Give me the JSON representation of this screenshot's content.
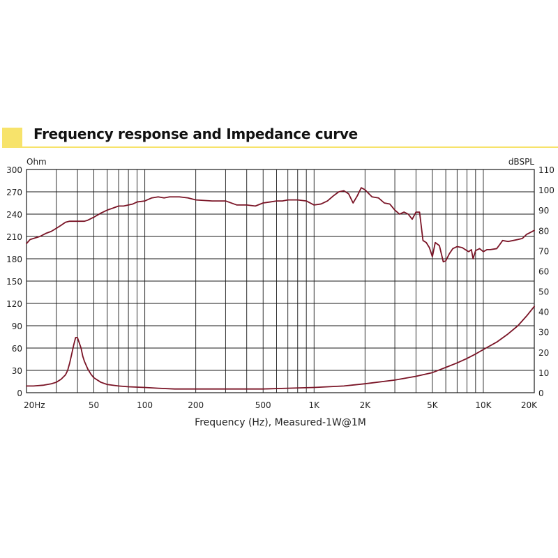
{
  "title": "Frequency response and Impedance curve",
  "colors": {
    "accent": "#f7e36b",
    "curve": "#7a1426",
    "grid": "#1a1a1a"
  },
  "chart_data": {
    "type": "line",
    "title": "Frequency response and Impedance curve",
    "xlabel": "Frequency (Hz), Measured-1W@1M",
    "ylabel_left": "Ohm",
    "ylabel_right": "dBSPL",
    "xscale": "log",
    "xlim": [
      20,
      20000
    ],
    "ylim_left": [
      0,
      300
    ],
    "ylim_right": [
      0,
      110
    ],
    "grid": true,
    "x_tick_labels": [
      {
        "value": 20,
        "label": "20Hz"
      },
      {
        "value": 50,
        "label": "50"
      },
      {
        "value": 100,
        "label": "100"
      },
      {
        "value": 200,
        "label": "200"
      },
      {
        "value": 500,
        "label": "500"
      },
      {
        "value": 1000,
        "label": "1K"
      },
      {
        "value": 2000,
        "label": "2K"
      },
      {
        "value": 5000,
        "label": "5K"
      },
      {
        "value": 10000,
        "label": "10K"
      },
      {
        "value": 20000,
        "label": "20K"
      }
    ],
    "y_left_ticks": [
      0,
      30,
      60,
      90,
      120,
      150,
      180,
      210,
      240,
      270,
      300
    ],
    "y_right_ticks": [
      0,
      10,
      20,
      30,
      40,
      50,
      60,
      70,
      80,
      90,
      100,
      110
    ],
    "series": [
      {
        "axis": "right",
        "x": [
          20,
          21,
          22,
          24,
          26,
          28,
          30,
          32,
          34,
          36,
          38,
          40,
          42,
          44,
          46,
          50,
          55,
          60,
          65,
          70,
          75,
          80,
          85,
          90,
          100,
          110,
          120,
          130,
          140,
          160,
          180,
          200,
          250,
          300,
          350,
          400,
          450,
          500,
          550,
          600,
          650,
          700,
          800,
          900,
          1000,
          1100,
          1200,
          1300,
          1400,
          1500,
          1600,
          1700,
          1800,
          1900,
          2000,
          2200,
          2400,
          2600,
          2800,
          3000,
          3200,
          3400,
          3600,
          3800,
          4000,
          4200,
          4400,
          4600,
          4800,
          5000,
          5200,
          5500,
          5800,
          6000,
          6300,
          6600,
          7000,
          7500,
          8000,
          8200,
          8500,
          8700,
          9000,
          9500,
          10000,
          10500,
          11000,
          12000,
          12500,
          13000,
          14000,
          15000,
          16000,
          17000,
          18000,
          19000,
          20000
        ],
        "values": [
          73.5,
          75.5,
          76,
          77,
          78.5,
          79.5,
          81,
          82.5,
          84,
          84.5,
          84.5,
          84.5,
          84.5,
          84.5,
          85,
          86.5,
          88.5,
          90,
          91,
          92,
          92,
          92.5,
          93,
          94,
          94.5,
          96,
          96.5,
          96,
          96.5,
          96.5,
          96,
          95,
          94.5,
          94.5,
          92.5,
          92.5,
          92,
          93.5,
          94,
          94.5,
          94.5,
          95,
          95,
          94.5,
          92.5,
          93,
          94.5,
          97,
          99,
          99.5,
          98,
          93.5,
          97,
          101,
          100,
          96.5,
          96,
          93.5,
          93,
          90,
          88,
          89,
          88,
          85.5,
          89,
          89,
          75,
          74,
          71.5,
          67,
          74,
          72.5,
          64.5,
          65,
          68.5,
          71,
          72,
          71.5,
          70,
          69.5,
          70.5,
          66,
          70,
          71,
          69.5,
          70.5,
          70.5,
          71,
          73,
          75,
          74.5,
          75,
          75.5,
          76,
          78,
          79,
          80
        ]
      },
      {
        "axis": "left",
        "x": [
          20,
          22,
          25,
          28,
          30,
          32,
          34,
          35,
          36,
          37,
          38,
          39,
          40,
          41,
          42,
          43,
          44,
          46,
          48,
          50,
          55,
          60,
          70,
          80,
          100,
          120,
          150,
          200,
          300,
          500,
          700,
          1000,
          1500,
          2000,
          3000,
          4000,
          5000,
          6000,
          7000,
          8000,
          9000,
          10000,
          12000,
          14000,
          16000,
          18000,
          20000
        ],
        "values": [
          9,
          9,
          10,
          12,
          14,
          18,
          24,
          30,
          40,
          52,
          64,
          74,
          74,
          67,
          60,
          49,
          42,
          32,
          25,
          20,
          14,
          11,
          9,
          8,
          7,
          6,
          5,
          5,
          5,
          5,
          6,
          7,
          9,
          12,
          17,
          22,
          27,
          34,
          40,
          46,
          52,
          58,
          68,
          79,
          90,
          103,
          116
        ]
      }
    ]
  }
}
